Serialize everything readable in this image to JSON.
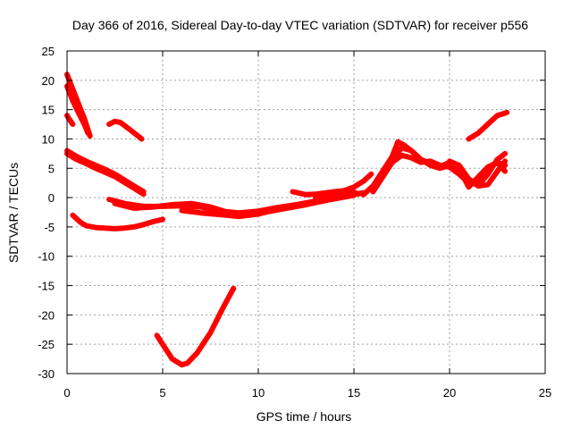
{
  "chart_data": {
    "type": "line",
    "title": "Day 366 of 2016, Sidereal Day-to-day VTEC variation (SDTVAR) for receiver p556",
    "xlabel": "GPS time / hours",
    "ylabel": "SDTVAR / TECUs",
    "xlim": [
      0,
      25
    ],
    "ylim": [
      -30,
      25
    ],
    "xticks": [
      "0",
      "5",
      "10",
      "15",
      "20",
      "25"
    ],
    "yticks": [
      "25",
      "20",
      "15",
      "10",
      "5",
      "0",
      "-5",
      "-10",
      "-15",
      "-20",
      "-25",
      "-30"
    ],
    "grid": true,
    "legend": "none",
    "color": "#ff0000",
    "series": [
      {
        "x": [
          0.0,
          0.3,
          0.6,
          0.9,
          1.2
        ],
        "y": [
          21.0,
          18.5,
          16.0,
          13.5,
          10.5
        ]
      },
      {
        "x": [
          0.0,
          0.3,
          0.6,
          0.9,
          1.1
        ],
        "y": [
          19.0,
          16.5,
          14.5,
          12.5,
          11.0
        ]
      },
      {
        "x": [
          0.0,
          0.15,
          0.3
        ],
        "y": [
          14.0,
          13.2,
          12.5
        ]
      },
      {
        "x": [
          2.2,
          2.5,
          2.8,
          3.2,
          3.6,
          3.9
        ],
        "y": [
          12.5,
          13.0,
          12.8,
          11.8,
          10.8,
          10.0
        ]
      },
      {
        "x": [
          0.0,
          0.5,
          1.0,
          1.5,
          2.0,
          2.5,
          3.0,
          3.5,
          4.0
        ],
        "y": [
          8.0,
          7.0,
          6.2,
          5.5,
          4.8,
          4.0,
          3.0,
          2.0,
          1.0
        ]
      },
      {
        "x": [
          0.0,
          0.5,
          1.0,
          1.5,
          2.0,
          2.5,
          3.0,
          3.5,
          4.0
        ],
        "y": [
          7.5,
          6.5,
          5.8,
          5.0,
          4.3,
          3.6,
          2.6,
          1.6,
          0.6
        ]
      },
      {
        "x": [
          0.3,
          0.7,
          1.0,
          1.5,
          2.0,
          2.5,
          3.0,
          3.5,
          4.0,
          4.5,
          5.0
        ],
        "y": [
          -3.0,
          -4.2,
          -4.8,
          -5.1,
          -5.2,
          -5.3,
          -5.2,
          -5.0,
          -4.6,
          -4.1,
          -3.7
        ]
      },
      {
        "x": [
          4.7,
          5.0,
          5.5,
          6.0,
          6.3,
          6.8,
          7.5,
          8.2,
          8.7
        ],
        "y": [
          -23.5,
          -25.0,
          -27.5,
          -28.5,
          -28.2,
          -26.5,
          -23.0,
          -18.5,
          -15.5
        ]
      },
      {
        "x": [
          2.2,
          3.0,
          4.0,
          5.0,
          6.0,
          7.0,
          8.0,
          9.0,
          10.0,
          11.0,
          12.0,
          13.0,
          14.0,
          15.0,
          15.5
        ],
        "y": [
          -0.3,
          -1.0,
          -1.5,
          -1.5,
          -1.4,
          -1.6,
          -2.3,
          -2.6,
          -2.3,
          -1.7,
          -1.2,
          -0.6,
          0.0,
          0.6,
          0.8
        ]
      },
      {
        "x": [
          2.5,
          3.5,
          4.5,
          5.5,
          6.5,
          7.5,
          8.5,
          9.5,
          10.5,
          11.5,
          12.5,
          13.5,
          14.5,
          15.5
        ],
        "y": [
          -1.0,
          -1.8,
          -1.6,
          -1.2,
          -1.0,
          -1.6,
          -2.6,
          -3.0,
          -2.4,
          -1.8,
          -1.2,
          -0.5,
          0.3,
          0.8
        ]
      },
      {
        "x": [
          6.0,
          7.0,
          8.0,
          9.0,
          10.0,
          11.0,
          12.0,
          13.0,
          14.0,
          15.0
        ],
        "y": [
          -2.2,
          -2.6,
          -2.9,
          -3.2,
          -2.8,
          -2.0,
          -1.3,
          -0.8,
          -0.2,
          0.4
        ]
      },
      {
        "x": [
          11.8,
          12.5,
          13.0,
          13.5,
          14.0,
          14.5,
          15.0,
          15.5,
          15.9
        ],
        "y": [
          1.0,
          0.5,
          0.6,
          0.8,
          1.0,
          1.2,
          1.8,
          2.8,
          4.0
        ]
      },
      {
        "x": [
          13.0,
          13.8,
          14.3,
          14.8,
          15.2
        ],
        "y": [
          -0.1,
          0.6,
          0.2,
          1.3,
          0.6
        ]
      },
      {
        "x": [
          15.5,
          16.0,
          16.5,
          17.0,
          17.3,
          17.6,
          18.0,
          18.5,
          19.0,
          19.5,
          20.0,
          20.5,
          21.0,
          21.5,
          22.0,
          22.5,
          22.9
        ],
        "y": [
          0.5,
          2.0,
          4.5,
          7.0,
          9.5,
          9.0,
          8.0,
          6.5,
          5.5,
          5.0,
          5.5,
          5.0,
          3.0,
          2.0,
          4.0,
          6.5,
          7.5
        ]
      },
      {
        "x": [
          16.0,
          16.5,
          17.0,
          17.5,
          18.0,
          18.5,
          19.0,
          19.5,
          20.0,
          20.5,
          21.0,
          21.5,
          22.0,
          22.5,
          22.9
        ],
        "y": [
          1.0,
          3.5,
          6.0,
          7.2,
          6.8,
          6.0,
          6.2,
          5.5,
          5.2,
          4.0,
          2.5,
          3.0,
          5.0,
          6.0,
          5.5
        ]
      },
      {
        "x": [
          17.0,
          17.5,
          18.0,
          18.5,
          19.0,
          19.5,
          20.0,
          20.5,
          21.0,
          21.5,
          22.0,
          22.5,
          22.9
        ],
        "y": [
          6.5,
          8.5,
          8.0,
          6.5,
          5.8,
          5.3,
          6.0,
          5.0,
          1.8,
          3.5,
          5.2,
          6.0,
          4.5
        ]
      },
      {
        "x": [
          20.0,
          20.5,
          21.0,
          21.5,
          22.0,
          22.5,
          22.9
        ],
        "y": [
          6.2,
          5.5,
          3.2,
          2.0,
          2.2,
          4.5,
          6.2
        ]
      },
      {
        "x": [
          21.0,
          21.5,
          22.0,
          22.5,
          23.0
        ],
        "y": [
          10.0,
          11.0,
          12.5,
          14.0,
          14.5
        ]
      }
    ]
  }
}
